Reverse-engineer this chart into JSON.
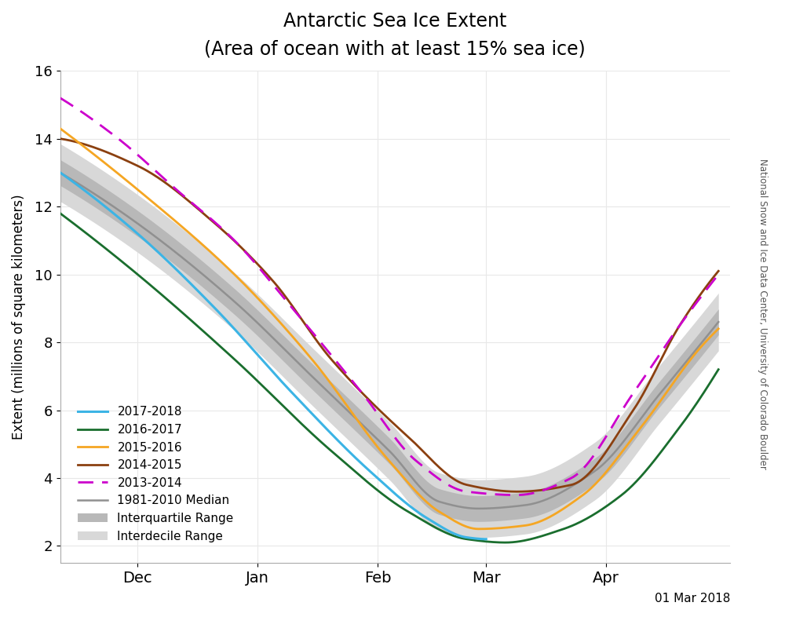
{
  "title_line1": "Antarctic Sea Ice Extent",
  "title_line2": "(Area of ocean with at least 15% sea ice)",
  "ylabel": "Extent (millions of square kilometers)",
  "ylim": [
    1.5,
    16.0
  ],
  "yticks": [
    2,
    4,
    6,
    8,
    10,
    12,
    14,
    16
  ],
  "date_label": "01 Mar 2018",
  "watermark": "National Snow and Ice Data Center, University of Colorado Boulder",
  "colors": {
    "2017_2018": "#3cb4e5",
    "2016_2017": "#1a6e2e",
    "2015_2016": "#f5a623",
    "2014_2015": "#8B4010",
    "2013_2014": "#cc00cc",
    "median": "#909090",
    "interquartile": "#b8b8b8",
    "interdecile": "#d8d8d8"
  }
}
